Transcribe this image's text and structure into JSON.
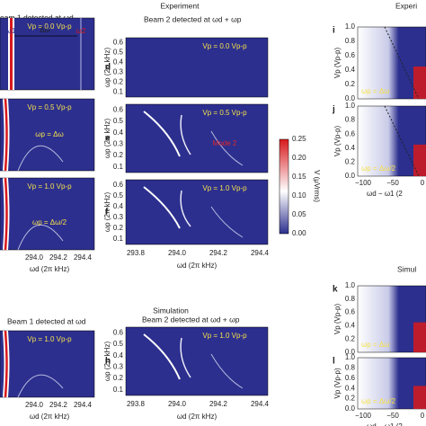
{
  "header": {
    "experiment": "Experiment",
    "experiment_right": "Experi",
    "beam1": "eam 1 detected at ωd",
    "beam2": "Beam 2 detected at ωd + ωp",
    "simulation": "Simulation",
    "simulation_right": "Simul",
    "beam1_sim": "Beam 1 detected at ωd",
    "beam2_sim": "Beam 2 detected at ωd + ωp"
  },
  "left": {
    "omega1": "ω1",
    "omega2": "ω2",
    "delta": "Δω",
    "panels": [
      {
        "text": "Vp = 0.0 Vp-p"
      },
      {
        "text": "Vp = 0.5 Vp-p",
        "note": "ωp = Δω"
      },
      {
        "text": "Vp = 1.0 Vp-p",
        "note": "ωp = Δω/2"
      },
      {
        "text": "Vp = 1.0 Vp-p"
      }
    ],
    "x_ticks": [
      "294.0",
      "294.2",
      "294.4"
    ],
    "x_label": "ωd (2π kHz)"
  },
  "middle": {
    "panels": [
      {
        "label": "d",
        "text": "Vp = 0.0 Vp-p"
      },
      {
        "label": "e",
        "text": "Vp = 0.5 Vp-p",
        "note": "Mode 2"
      },
      {
        "label": "f",
        "text": "Vp = 1.0 Vp-p"
      },
      {
        "label": "h",
        "text": "Vp = 1.0 Vp-p"
      }
    ],
    "y_ticks": [
      "0.6",
      "0.5",
      "0.4",
      "0.3",
      "0.2",
      "0.1"
    ],
    "y_label": "ωp (2π kHz)",
    "x_ticks": [
      "293.8",
      "294.0",
      "294.2",
      "294.4"
    ],
    "x_label": "ωd (2π kHz)"
  },
  "colorbar": {
    "ticks": [
      "0.25",
      "0.20",
      "0.15",
      "0.10",
      "0.05",
      "0.00"
    ],
    "label": "V (μVrms)"
  },
  "right": {
    "panels": [
      {
        "label": "i",
        "note": "ωp = Δω"
      },
      {
        "label": "j",
        "note": "ωp = Δω/2"
      },
      {
        "label": "k",
        "note": "ωp = Δω"
      },
      {
        "label": "l",
        "note": "ωp = Δω/2"
      }
    ],
    "y_ticks": [
      "1.0",
      "0.8",
      "0.6",
      "0.4",
      "0.2",
      "0.0"
    ],
    "y_label": "Vp (Vp-p)",
    "x_ticks": [
      "−100",
      "−50",
      "0"
    ],
    "x_label": "ωd − ω1 (2"
  }
}
